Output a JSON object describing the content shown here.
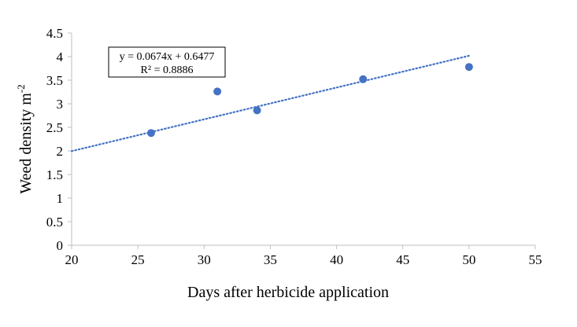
{
  "chart_data": {
    "type": "scatter",
    "title": "",
    "xlabel": "Days after herbicide application",
    "ylabel": "Weed density m",
    "ylabel_sup": "-2",
    "xlim": [
      20,
      55
    ],
    "ylim": [
      0,
      4.5
    ],
    "x_ticks": [
      20,
      25,
      30,
      35,
      40,
      45,
      50,
      55
    ],
    "y_ticks": [
      "0",
      "0.5",
      "1",
      "1.5",
      "2",
      "2.5",
      "3",
      "3.5",
      "4",
      "4.5"
    ],
    "grid": false,
    "legend": "none",
    "points": [
      {
        "x": 26,
        "y": 2.38
      },
      {
        "x": 31,
        "y": 3.26
      },
      {
        "x": 34,
        "y": 2.86
      },
      {
        "x": 42,
        "y": 3.52
      },
      {
        "x": 50,
        "y": 3.78
      }
    ],
    "trendline": {
      "type": "linear",
      "slope": 0.0674,
      "intercept": 0.6477,
      "x_range": [
        20,
        50
      ],
      "style": "dotted"
    },
    "annotation": {
      "equation": "y = 0.0674x + 0.6477",
      "r2": "R² = 0.8886"
    }
  },
  "colors": {
    "marker": "#4472C4",
    "trendline": "#4472C4",
    "axis": "#bfbfbf"
  }
}
